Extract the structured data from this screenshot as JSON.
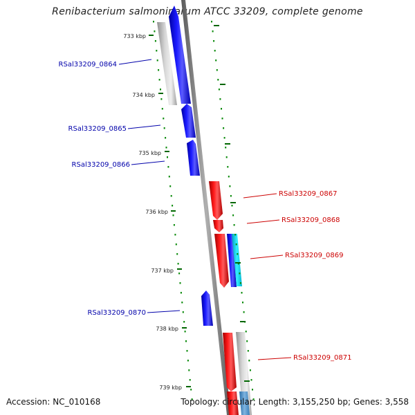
{
  "title": "Renibacterium salmoninarum ATCC 33209, complete genome",
  "accession_text": "Accession: NC_010168",
  "summary_text": "Topology: circular; Length: 3,155,250 bp; Genes: 3,558",
  "ticks": [
    "733 kbp",
    "734 kbp",
    "735 kbp",
    "736 kbp",
    "737 kbp",
    "738 kbp",
    "739 kbp"
  ],
  "left_genes": [
    "RSal33209_0864",
    "RSal33209_0865",
    "RSal33209_0866",
    "RSal33209_0870"
  ],
  "right_genes": [
    "RSal33209_0867",
    "RSal33209_0868",
    "RSal33209_0869",
    "RSal33209_0871"
  ],
  "colors": {
    "forward_cds": "#0000ff",
    "reverse_cds": "#ff0000",
    "cyan_feature": "#00e5ff",
    "gene_region": "#c0c0c0",
    "steelblue_feature": "#4a8fc8",
    "backbone": "#808080",
    "tick_mark": "#006600",
    "left_label": "#0000aa",
    "right_label": "#cc0000"
  }
}
